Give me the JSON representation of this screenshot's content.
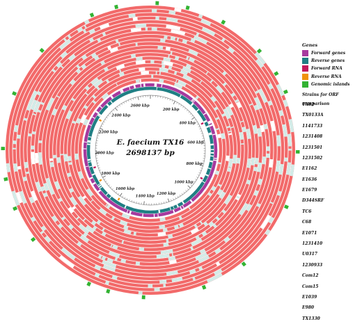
{
  "genome": {
    "name": "E. faecium TX16",
    "length_label": "2698137 bp",
    "length_bp": 2698137
  },
  "kbp_labels": [
    "200 kbp",
    "400 kbp",
    "600 kbp",
    "800 kbp",
    "1000 kbp",
    "1200 kbp",
    "1400 kbp",
    "1600 kbp",
    "1800 kbp",
    "2000 kbp",
    "2200 kbp",
    "2400 kbp",
    "2600 kbp"
  ],
  "legend": {
    "genes_title": "Genes",
    "items": [
      {
        "label": "Forward genes",
        "color": "#a63a9e"
      },
      {
        "label": "Reverse genes",
        "color": "#1f7f84"
      },
      {
        "label": "Forward RNA",
        "color": "#c2185b"
      },
      {
        "label": "Reverse RNA",
        "color": "#f0930a"
      },
      {
        "label": "Genomic islands",
        "color": "#33b333"
      }
    ],
    "strains_title": "Strains for ORF comparison",
    "strains": [
      "TX82",
      "TX0133A",
      "1141733",
      "1231408",
      "1231501",
      "1231502",
      "E1162",
      "E1636",
      "E1679",
      "D344SRF",
      "TC6",
      "C68",
      "E1071",
      "1231410",
      "U0317",
      "1230933",
      "Com12",
      "Com15",
      "E1039",
      "E980",
      "TX1330"
    ]
  },
  "colors": {
    "ring_fill": "#f26a6a",
    "ring_gap": "#ffffff",
    "missing": "#d3ece8",
    "forward_genes": "#a63a9e",
    "reverse_genes": "#1f7f84",
    "axis": "#555555",
    "island": "#33b333"
  }
}
